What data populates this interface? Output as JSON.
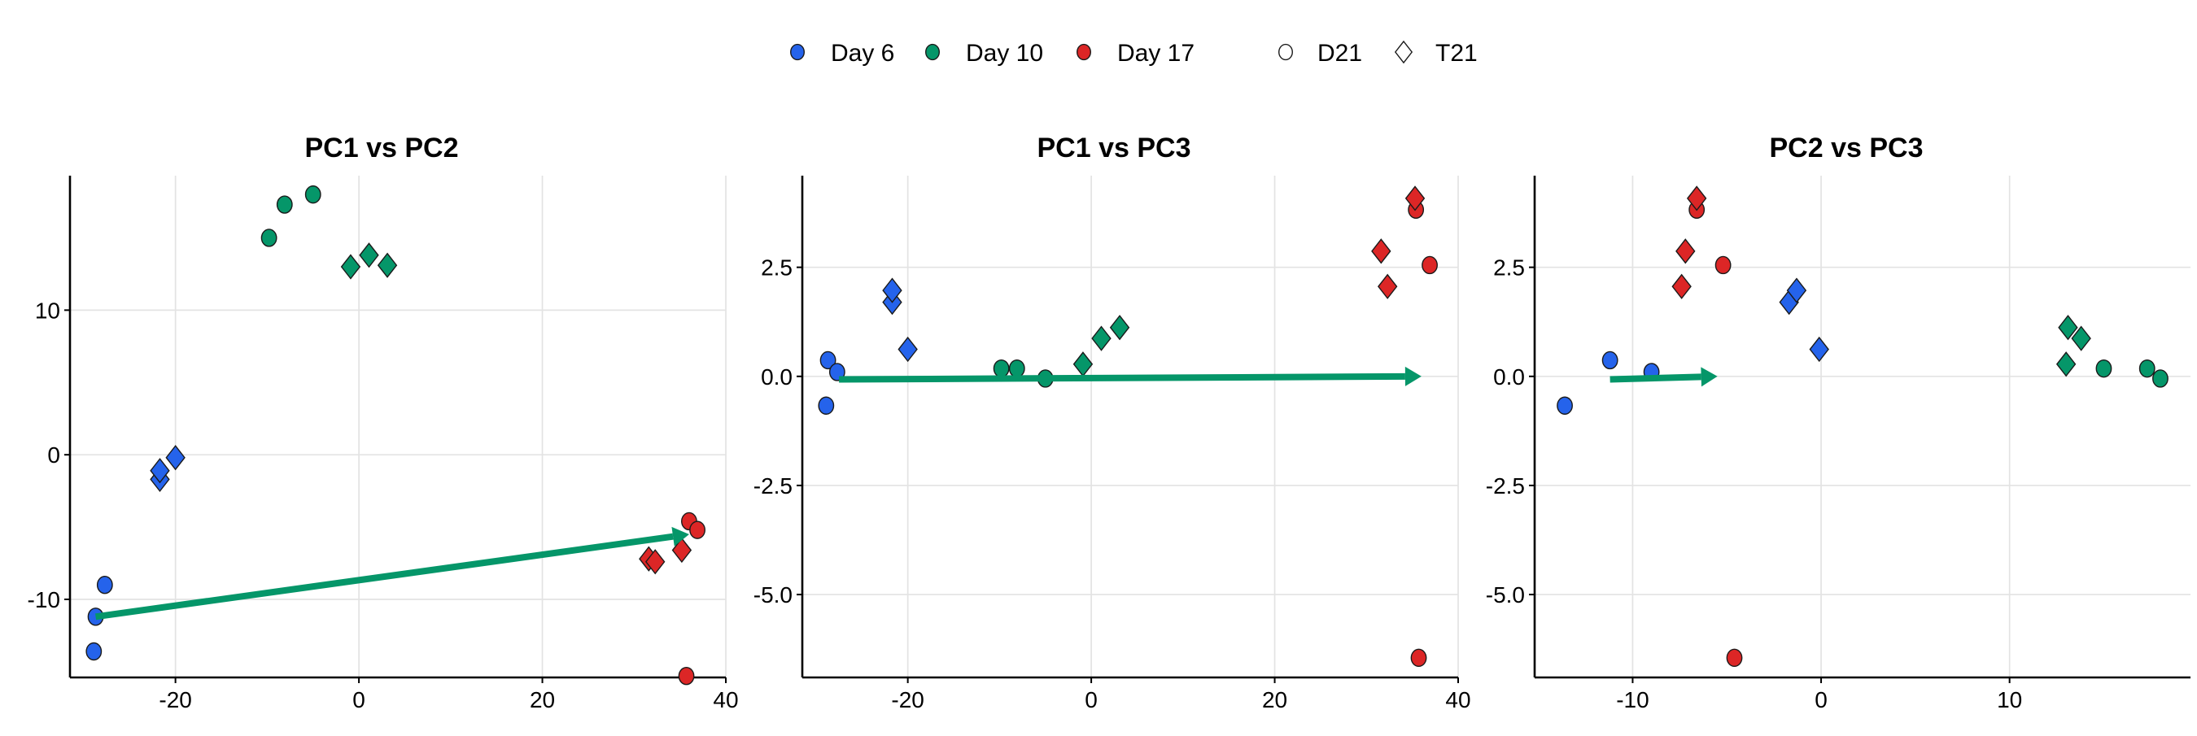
{
  "legend": {
    "groups": [
      {
        "label": "Day 6",
        "color": "#2563EB",
        "shape": "circle"
      },
      {
        "label": "Day 10",
        "color": "#059669",
        "shape": "circle"
      },
      {
        "label": "Day 17",
        "color": "#DC2626",
        "shape": "circle"
      }
    ],
    "shapes": [
      {
        "label": "D21",
        "shape": "circle"
      },
      {
        "label": "T21",
        "shape": "diamond"
      }
    ]
  },
  "chart_data": [
    {
      "type": "scatter",
      "title": "PC1 vs PC2",
      "xlabel": "",
      "ylabel": "",
      "xlim": [
        -31.5,
        40
      ],
      "ylim": [
        -15.4,
        19.3
      ],
      "xticks": [
        -20,
        0,
        20,
        40
      ],
      "xtick_labels": [
        "-20",
        "0",
        "20",
        "40"
      ],
      "yticks": [
        -10,
        0,
        10
      ],
      "ytick_labels": [
        "-10",
        "0",
        "10"
      ],
      "grid": true,
      "arrow": {
        "from": [
          -28.7,
          -11.2
        ],
        "to": [
          36.0,
          -5.5
        ],
        "color": "#059669"
      },
      "points": [
        {
          "group": "Day 6",
          "genotype": "D21",
          "x": -28.9,
          "y": -13.6
        },
        {
          "group": "Day 6",
          "genotype": "D21",
          "x": -28.7,
          "y": -11.2
        },
        {
          "group": "Day 6",
          "genotype": "D21",
          "x": -27.7,
          "y": -9.0
        },
        {
          "group": "Day 6",
          "genotype": "T21",
          "x": -21.7,
          "y": -1.7
        },
        {
          "group": "Day 6",
          "genotype": "T21",
          "x": -21.7,
          "y": -1.1
        },
        {
          "group": "Day 6",
          "genotype": "T21",
          "x": -20.0,
          "y": -0.2
        },
        {
          "group": "Day 10",
          "genotype": "D21",
          "x": -9.8,
          "y": 15.0
        },
        {
          "group": "Day 10",
          "genotype": "D21",
          "x": -8.1,
          "y": 17.3
        },
        {
          "group": "Day 10",
          "genotype": "D21",
          "x": -5.0,
          "y": 18.0
        },
        {
          "group": "Day 10",
          "genotype": "T21",
          "x": -0.9,
          "y": 13.0
        },
        {
          "group": "Day 10",
          "genotype": "T21",
          "x": 1.1,
          "y": 13.8
        },
        {
          "group": "Day 10",
          "genotype": "T21",
          "x": 3.1,
          "y": 13.1
        },
        {
          "group": "Day 17",
          "genotype": "D21",
          "x": 36.0,
          "y": -4.6
        },
        {
          "group": "Day 17",
          "genotype": "D21",
          "x": 36.9,
          "y": -5.2
        },
        {
          "group": "Day 17",
          "genotype": "D21",
          "x": 35.7,
          "y": -15.3
        },
        {
          "group": "Day 17",
          "genotype": "T21",
          "x": 31.6,
          "y": -7.2
        },
        {
          "group": "Day 17",
          "genotype": "T21",
          "x": 32.3,
          "y": -7.4
        },
        {
          "group": "Day 17",
          "genotype": "T21",
          "x": 35.2,
          "y": -6.6
        }
      ]
    },
    {
      "type": "scatter",
      "title": "PC1 vs PC3",
      "xlabel": "",
      "ylabel": "",
      "xlim": [
        -31.5,
        40
      ],
      "ylim": [
        -6.9,
        4.6
      ],
      "xticks": [
        -20,
        0,
        20,
        40
      ],
      "xtick_labels": [
        "-20",
        "0",
        "20",
        "40"
      ],
      "yticks": [
        -5,
        -2.5,
        0,
        2.5
      ],
      "ytick_labels": [
        "-5.0",
        "-2.5",
        "0.0",
        "2.5"
      ],
      "grid": true,
      "arrow": {
        "from": [
          -27.5,
          -0.07
        ],
        "to": [
          36.0,
          0.0
        ],
        "color": "#059669"
      },
      "points": [
        {
          "group": "Day 6",
          "genotype": "D21",
          "x": -28.9,
          "y": -0.67
        },
        {
          "group": "Day 6",
          "genotype": "D21",
          "x": -28.7,
          "y": 0.37
        },
        {
          "group": "Day 6",
          "genotype": "D21",
          "x": -27.7,
          "y": 0.1
        },
        {
          "group": "Day 6",
          "genotype": "T21",
          "x": -21.7,
          "y": 1.7
        },
        {
          "group": "Day 6",
          "genotype": "T21",
          "x": -21.7,
          "y": 1.97
        },
        {
          "group": "Day 6",
          "genotype": "T21",
          "x": -20.0,
          "y": 0.62
        },
        {
          "group": "Day 10",
          "genotype": "D21",
          "x": -9.8,
          "y": 0.18
        },
        {
          "group": "Day 10",
          "genotype": "D21",
          "x": -8.1,
          "y": 0.18
        },
        {
          "group": "Day 10",
          "genotype": "D21",
          "x": -5.0,
          "y": -0.05
        },
        {
          "group": "Day 10",
          "genotype": "T21",
          "x": -0.9,
          "y": 0.28
        },
        {
          "group": "Day 10",
          "genotype": "T21",
          "x": 1.1,
          "y": 0.87
        },
        {
          "group": "Day 10",
          "genotype": "T21",
          "x": 3.1,
          "y": 1.12
        },
        {
          "group": "Day 17",
          "genotype": "D21",
          "x": 35.4,
          "y": 3.82
        },
        {
          "group": "Day 17",
          "genotype": "D21",
          "x": 36.9,
          "y": 2.55
        },
        {
          "group": "Day 17",
          "genotype": "D21",
          "x": 35.7,
          "y": -6.45
        },
        {
          "group": "Day 17",
          "genotype": "T21",
          "x": 31.6,
          "y": 2.87
        },
        {
          "group": "Day 17",
          "genotype": "T21",
          "x": 32.3,
          "y": 2.06
        },
        {
          "group": "Day 17",
          "genotype": "T21",
          "x": 35.3,
          "y": 4.08
        }
      ]
    },
    {
      "type": "scatter",
      "title": "PC2 vs PC3",
      "xlabel": "",
      "ylabel": "",
      "xlim": [
        -15.2,
        19.6
      ],
      "ylim": [
        -6.9,
        4.6
      ],
      "xticks": [
        -10,
        0,
        10
      ],
      "xtick_labels": [
        "-10",
        "0",
        "10"
      ],
      "yticks": [
        -5,
        -2.5,
        0,
        2.5
      ],
      "ytick_labels": [
        "-5.0",
        "-2.5",
        "0.0",
        "2.5"
      ],
      "grid": true,
      "arrow": {
        "from": [
          -11.2,
          -0.07
        ],
        "to": [
          -5.5,
          0.0
        ],
        "color": "#059669"
      },
      "points": [
        {
          "group": "Day 6",
          "genotype": "D21",
          "x": -13.6,
          "y": -0.67
        },
        {
          "group": "Day 6",
          "genotype": "D21",
          "x": -11.2,
          "y": 0.37
        },
        {
          "group": "Day 6",
          "genotype": "D21",
          "x": -9.0,
          "y": 0.1
        },
        {
          "group": "Day 6",
          "genotype": "T21",
          "x": -1.7,
          "y": 1.7
        },
        {
          "group": "Day 6",
          "genotype": "T21",
          "x": -1.3,
          "y": 1.97
        },
        {
          "group": "Day 6",
          "genotype": "T21",
          "x": -0.1,
          "y": 0.62
        },
        {
          "group": "Day 10",
          "genotype": "D21",
          "x": 15.0,
          "y": 0.18
        },
        {
          "group": "Day 10",
          "genotype": "D21",
          "x": 17.3,
          "y": 0.18
        },
        {
          "group": "Day 10",
          "genotype": "D21",
          "x": 18.0,
          "y": -0.05
        },
        {
          "group": "Day 10",
          "genotype": "T21",
          "x": 13.0,
          "y": 0.28
        },
        {
          "group": "Day 10",
          "genotype": "T21",
          "x": 13.1,
          "y": 1.12
        },
        {
          "group": "Day 10",
          "genotype": "T21",
          "x": 13.8,
          "y": 0.87
        },
        {
          "group": "Day 17",
          "genotype": "D21",
          "x": -6.6,
          "y": 3.82
        },
        {
          "group": "Day 17",
          "genotype": "D21",
          "x": -5.2,
          "y": 2.55
        },
        {
          "group": "Day 17",
          "genotype": "D21",
          "x": -4.6,
          "y": -6.45
        },
        {
          "group": "Day 17",
          "genotype": "T21",
          "x": -7.4,
          "y": 2.06
        },
        {
          "group": "Day 17",
          "genotype": "T21",
          "x": -7.2,
          "y": 2.87
        },
        {
          "group": "Day 17",
          "genotype": "T21",
          "x": -6.6,
          "y": 4.08
        }
      ]
    }
  ]
}
